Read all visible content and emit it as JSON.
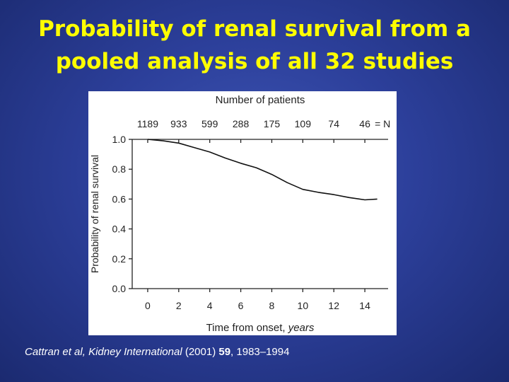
{
  "slide": {
    "title_line1": "Probability of renal survival from a",
    "title_line2": "pooled analysis of all 32 studies",
    "title_color": "#ffff00",
    "background_color": "#2c3f9a"
  },
  "chart_data": {
    "type": "line",
    "title": "Number of patients",
    "xlabel": "Time from onset,",
    "xlabel_unit": "years",
    "ylabel": "Probability of renal survival",
    "xlim": [
      -1,
      15.5
    ],
    "ylim": [
      0,
      1
    ],
    "x_ticks": [
      "0",
      "2",
      "4",
      "6",
      "8",
      "10",
      "12",
      "14"
    ],
    "y_ticks": [
      "0.0",
      "0.2",
      "0.4",
      "0.6",
      "0.8",
      "1.0"
    ],
    "at_risk_label": "= N",
    "at_risk": [
      "1189",
      "933",
      "599",
      "288",
      "175",
      "109",
      "74",
      "46"
    ],
    "grid": false,
    "series": [
      {
        "x": [
          0,
          1,
          2,
          3,
          4,
          5,
          6,
          7,
          8,
          9,
          10,
          11,
          12,
          13,
          14,
          14.8
        ],
        "y": [
          1.0,
          0.99,
          0.975,
          0.945,
          0.915,
          0.875,
          0.84,
          0.81,
          0.765,
          0.71,
          0.665,
          0.645,
          0.63,
          0.61,
          0.595,
          0.6
        ]
      }
    ]
  },
  "citation": {
    "authors": "Cattran et al,",
    "journal": "Kidney International",
    "year": "(2001)",
    "volume": "59",
    "pages": ", 1983–1994"
  }
}
